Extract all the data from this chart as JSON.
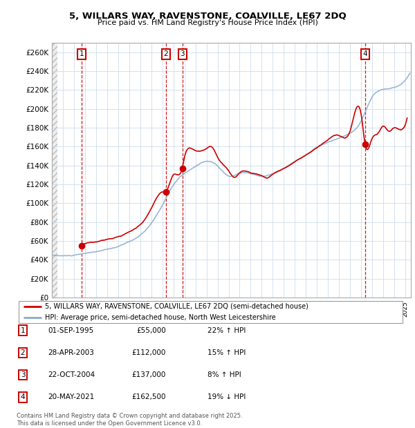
{
  "title": "5, WILLARS WAY, RAVENSTONE, COALVILLE, LE67 2DQ",
  "subtitle": "Price paid vs. HM Land Registry's House Price Index (HPI)",
  "ylim": [
    0,
    270000
  ],
  "yticks": [
    0,
    20000,
    40000,
    60000,
    80000,
    100000,
    120000,
    140000,
    160000,
    180000,
    200000,
    220000,
    240000,
    260000
  ],
  "ytick_labels": [
    "£0",
    "£20K",
    "£40K",
    "£60K",
    "£80K",
    "£100K",
    "£120K",
    "£140K",
    "£160K",
    "£180K",
    "£200K",
    "£220K",
    "£240K",
    "£260K"
  ],
  "xlim_start": 1993.0,
  "xlim_end": 2025.5,
  "sale_dates": [
    1995.67,
    2003.33,
    2004.81,
    2021.38
  ],
  "sale_prices": [
    55000,
    112000,
    137000,
    162500
  ],
  "sale_labels": [
    "1",
    "2",
    "3",
    "4"
  ],
  "legend_entries": [
    "5, WILLARS WAY, RAVENSTONE, COALVILLE, LE67 2DQ (semi-detached house)",
    "HPI: Average price, semi-detached house, North West Leicestershire"
  ],
  "table_rows": [
    [
      "1",
      "01-SEP-1995",
      "£55,000",
      "22% ↑ HPI"
    ],
    [
      "2",
      "28-APR-2003",
      "£112,000",
      "15% ↑ HPI"
    ],
    [
      "3",
      "22-OCT-2004",
      "£137,000",
      "8% ↑ HPI"
    ],
    [
      "4",
      "20-MAY-2021",
      "£162,500",
      "19% ↓ HPI"
    ]
  ],
  "footer": "Contains HM Land Registry data © Crown copyright and database right 2025.\nThis data is licensed under the Open Government Licence v3.0.",
  "red_color": "#cc0000",
  "blue_color": "#88aacc",
  "box_color": "#cc0000"
}
